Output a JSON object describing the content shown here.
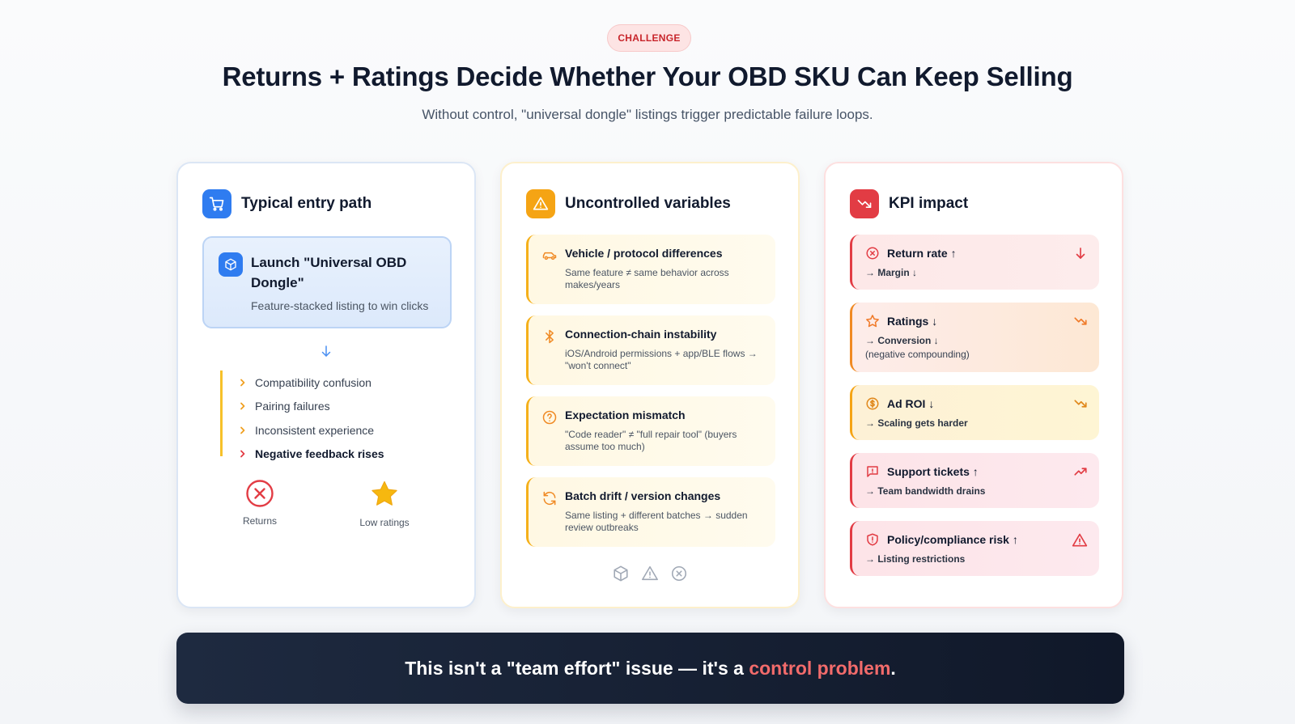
{
  "badge": "CHALLENGE",
  "title": "Returns + Ratings Decide Whether Your OBD SKU Can Keep Selling",
  "subtitle": "Without control, \"universal dongle\" listings trigger predictable failure loops.",
  "colors": {
    "blue": "#2f7cf0",
    "amber": "#f5a414",
    "red": "#e23c44",
    "dark": "#111a2e"
  },
  "entry": {
    "title": "Typical entry path",
    "icon": "cart-icon",
    "launch_title": "Launch \"Universal OBD Dongle\"",
    "launch_sub": "Feature-stacked listing to win clicks",
    "chain": [
      "Compatibility confusion",
      "Pairing failures",
      "Inconsistent experience",
      "Negative feedback rises"
    ],
    "outcomes": [
      "Returns",
      "Low ratings"
    ]
  },
  "variables": {
    "title": "Uncontrolled variables",
    "icon": "warning-icon",
    "items": [
      {
        "title": "Vehicle / protocol differences",
        "desc": "Same feature ≠ same behavior across makes/years",
        "icon": "car-icon"
      },
      {
        "title": "Connection-chain instability",
        "desc": "iOS/Android permissions + app/BLE flows → \"won't connect\"",
        "icon": "bluetooth-icon"
      },
      {
        "title": "Expectation mismatch",
        "desc": "\"Code reader\" ≠ \"full repair tool\" (buyers assume too much)",
        "icon": "question-icon"
      },
      {
        "title": "Batch drift / version changes",
        "desc": "Same listing + different batches → sudden review outbreaks",
        "icon": "refresh-icon"
      }
    ]
  },
  "kpi": {
    "title": "KPI impact",
    "icon": "trend-down-icon",
    "items": [
      {
        "title": "Return rate ↑",
        "sub": "→ Margin ↓",
        "sub2": "",
        "icon": "x-circle-icon",
        "trend": "arrow-down-icon"
      },
      {
        "title": "Ratings ↓",
        "sub": "→ Conversion ↓",
        "sub2": "(negative compounding)",
        "icon": "star-outline-icon",
        "trend": "trend-down-icon"
      },
      {
        "title": "Ad ROI ↓",
        "sub": "→ Scaling gets harder",
        "sub2": "",
        "icon": "dollar-icon",
        "trend": "trend-down-icon"
      },
      {
        "title": "Support tickets ↑",
        "sub": "→ Team bandwidth drains",
        "sub2": "",
        "icon": "message-alert-icon",
        "trend": "trend-up-icon"
      },
      {
        "title": "Policy/compliance risk ↑",
        "sub": "→ Listing restrictions",
        "sub2": "",
        "icon": "shield-alert-icon",
        "trend": "warning-icon"
      }
    ]
  },
  "banner": {
    "lead": "This isn't a \"team effort\" issue — it's a ",
    "accent": "control problem",
    "tail": "."
  }
}
